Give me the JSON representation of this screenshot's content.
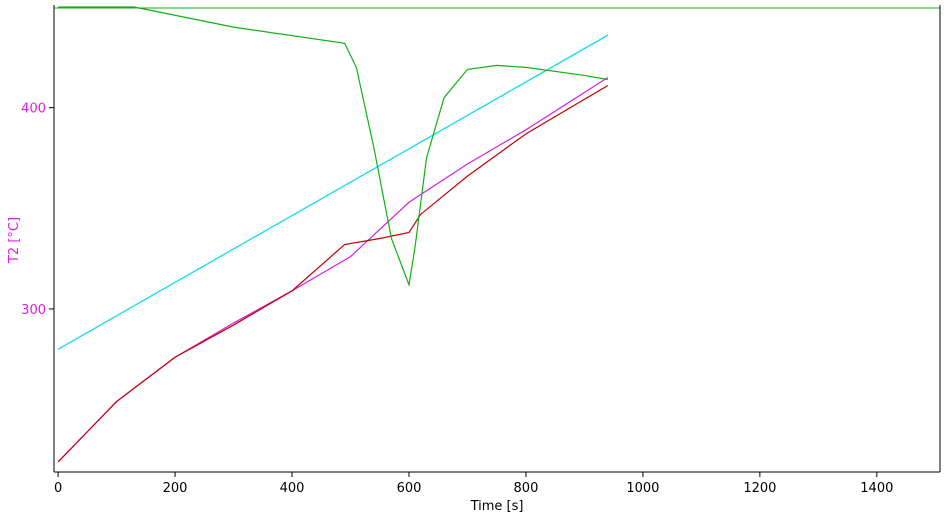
{
  "chart_data": {
    "type": "line",
    "x_label": "Time [s]",
    "y_label": "T2 [°C]",
    "xlim": [
      -7,
      1508
    ],
    "ylim": [
      219,
      451
    ],
    "xticks": [
      0,
      200,
      400,
      600,
      800,
      1000,
      1200,
      1400
    ],
    "yticks": [
      300,
      400
    ],
    "axis_color": "#e020e0",
    "series": [
      {
        "color": "#00d8e8",
        "x": [
          0,
          940
        ],
        "values": [
          280,
          436
        ]
      },
      {
        "color": "#d020e0",
        "x": [
          0,
          50,
          100,
          200,
          300,
          400,
          500,
          600,
          700,
          800,
          940
        ],
        "values": [
          224,
          239,
          254,
          276,
          293,
          309,
          326,
          353,
          372,
          389,
          415
        ]
      },
      {
        "color": "#c00000",
        "x": [
          0,
          50,
          100,
          200,
          300,
          400,
          490,
          550,
          600,
          620,
          700,
          800,
          940
        ],
        "values": [
          224,
          239,
          254,
          276,
          292,
          309,
          332,
          335,
          338,
          347,
          366,
          387,
          411
        ]
      },
      {
        "color": "#10b010",
        "x": [
          0,
          130,
          300,
          490,
          510,
          540,
          570,
          600,
          610,
          630,
          660,
          700,
          750,
          800,
          900,
          940
        ],
        "values": [
          450,
          450,
          440,
          432,
          420,
          380,
          335,
          312,
          330,
          375,
          405,
          419,
          421,
          420,
          416,
          414
        ]
      }
    ]
  }
}
